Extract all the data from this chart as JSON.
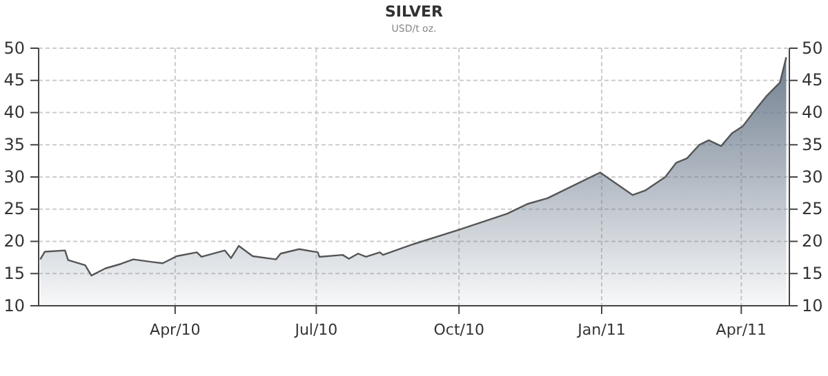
{
  "chart_data": {
    "type": "area",
    "title": "SILVER",
    "subtitle": "USD/t oz.",
    "x": [
      "2010-01-04",
      "2010-01-07",
      "2010-01-20",
      "2010-01-22",
      "2010-02-02",
      "2010-02-06",
      "2010-02-15",
      "2010-02-25",
      "2010-03-05",
      "2010-03-17",
      "2010-03-24",
      "2010-04-02",
      "2010-04-15",
      "2010-04-18",
      "2010-05-03",
      "2010-05-07",
      "2010-05-12",
      "2010-05-21",
      "2010-06-05",
      "2010-06-08",
      "2010-06-20",
      "2010-07-02",
      "2010-07-03",
      "2010-07-18",
      "2010-07-22",
      "2010-07-28",
      "2010-08-02",
      "2010-08-11",
      "2010-08-13",
      "2010-09-02",
      "2010-10-01",
      "2010-11-01",
      "2010-11-14",
      "2010-11-27",
      "2010-12-31",
      "2011-01-21",
      "2011-01-29",
      "2011-02-11",
      "2011-02-18",
      "2011-02-25",
      "2011-03-05",
      "2011-03-11",
      "2011-03-19",
      "2011-03-26",
      "2011-04-02",
      "2011-04-10",
      "2011-04-17",
      "2011-04-26",
      "2011-04-30"
    ],
    "series": [
      {
        "color": "#6b7a8c",
        "values": [
          17.2,
          18.4,
          18.6,
          17.1,
          16.3,
          14.7,
          15.8,
          16.5,
          17.2,
          16.8,
          16.6,
          17.7,
          18.3,
          17.6,
          18.6,
          17.4,
          19.3,
          17.7,
          17.2,
          18.1,
          18.8,
          18.3,
          17.6,
          17.9,
          17.3,
          18.1,
          17.6,
          18.3,
          17.9,
          19.6,
          21.8,
          24.3,
          25.8,
          26.7,
          30.7,
          27.2,
          27.9,
          30.0,
          32.2,
          32.9,
          35.0,
          35.7,
          34.8,
          36.8,
          37.9,
          40.4,
          42.5,
          44.7,
          48.6
        ]
      }
    ],
    "xlim": [
      "2010-01-03",
      "2011-05-02"
    ],
    "xticks": [
      {
        "value": "2010-04-01",
        "label": "Apr/10"
      },
      {
        "value": "2010-07-01",
        "label": "Jul/10"
      },
      {
        "value": "2010-10-01",
        "label": "Oct/10"
      },
      {
        "value": "2011-01-01",
        "label": "Jan/11"
      },
      {
        "value": "2011-04-01",
        "label": "Apr/11"
      }
    ],
    "ylim": [
      10,
      50
    ],
    "yticks": [
      10,
      15,
      20,
      25,
      30,
      35,
      40,
      45,
      50
    ],
    "y2lim": [
      10,
      50
    ],
    "y2ticks": [
      10,
      15,
      20,
      25,
      30,
      35,
      40,
      45,
      50
    ],
    "grid": true,
    "marker": "none",
    "line_style": "solid"
  }
}
